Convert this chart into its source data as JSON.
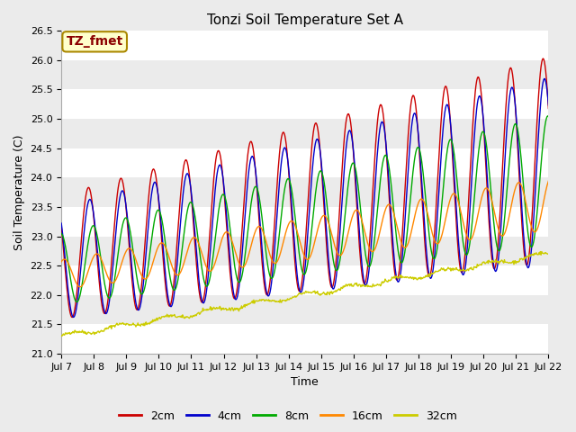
{
  "title": "Tonzi Soil Temperature Set A",
  "xlabel": "Time",
  "ylabel": "Soil Temperature (C)",
  "annotation": "TZ_fmet",
  "ylim": [
    21.0,
    26.5
  ],
  "n_days": 15,
  "x_tick_labels": [
    "Jul 7",
    "Jul 8",
    "Jul 9",
    "Jul 10",
    "Jul 11",
    "Jul 12",
    "Jul 13",
    "Jul 14",
    "Jul 15",
    "Jul 16",
    "Jul 17",
    "Jul 18",
    "Jul 19",
    "Jul 20",
    "Jul 21",
    "Jul 22"
  ],
  "series": {
    "2cm": {
      "color": "#cc0000",
      "linewidth": 1.0
    },
    "4cm": {
      "color": "#0000cc",
      "linewidth": 1.0
    },
    "8cm": {
      "color": "#00aa00",
      "linewidth": 1.0
    },
    "16cm": {
      "color": "#ff8800",
      "linewidth": 1.0
    },
    "32cm": {
      "color": "#cccc00",
      "linewidth": 1.0
    }
  },
  "bg_light": "#ebebeb",
  "bg_dark": "#d8d8d8",
  "grid_color": "#ffffff",
  "title_fontsize": 11,
  "label_fontsize": 9,
  "tick_fontsize": 8,
  "legend_fontsize": 9
}
